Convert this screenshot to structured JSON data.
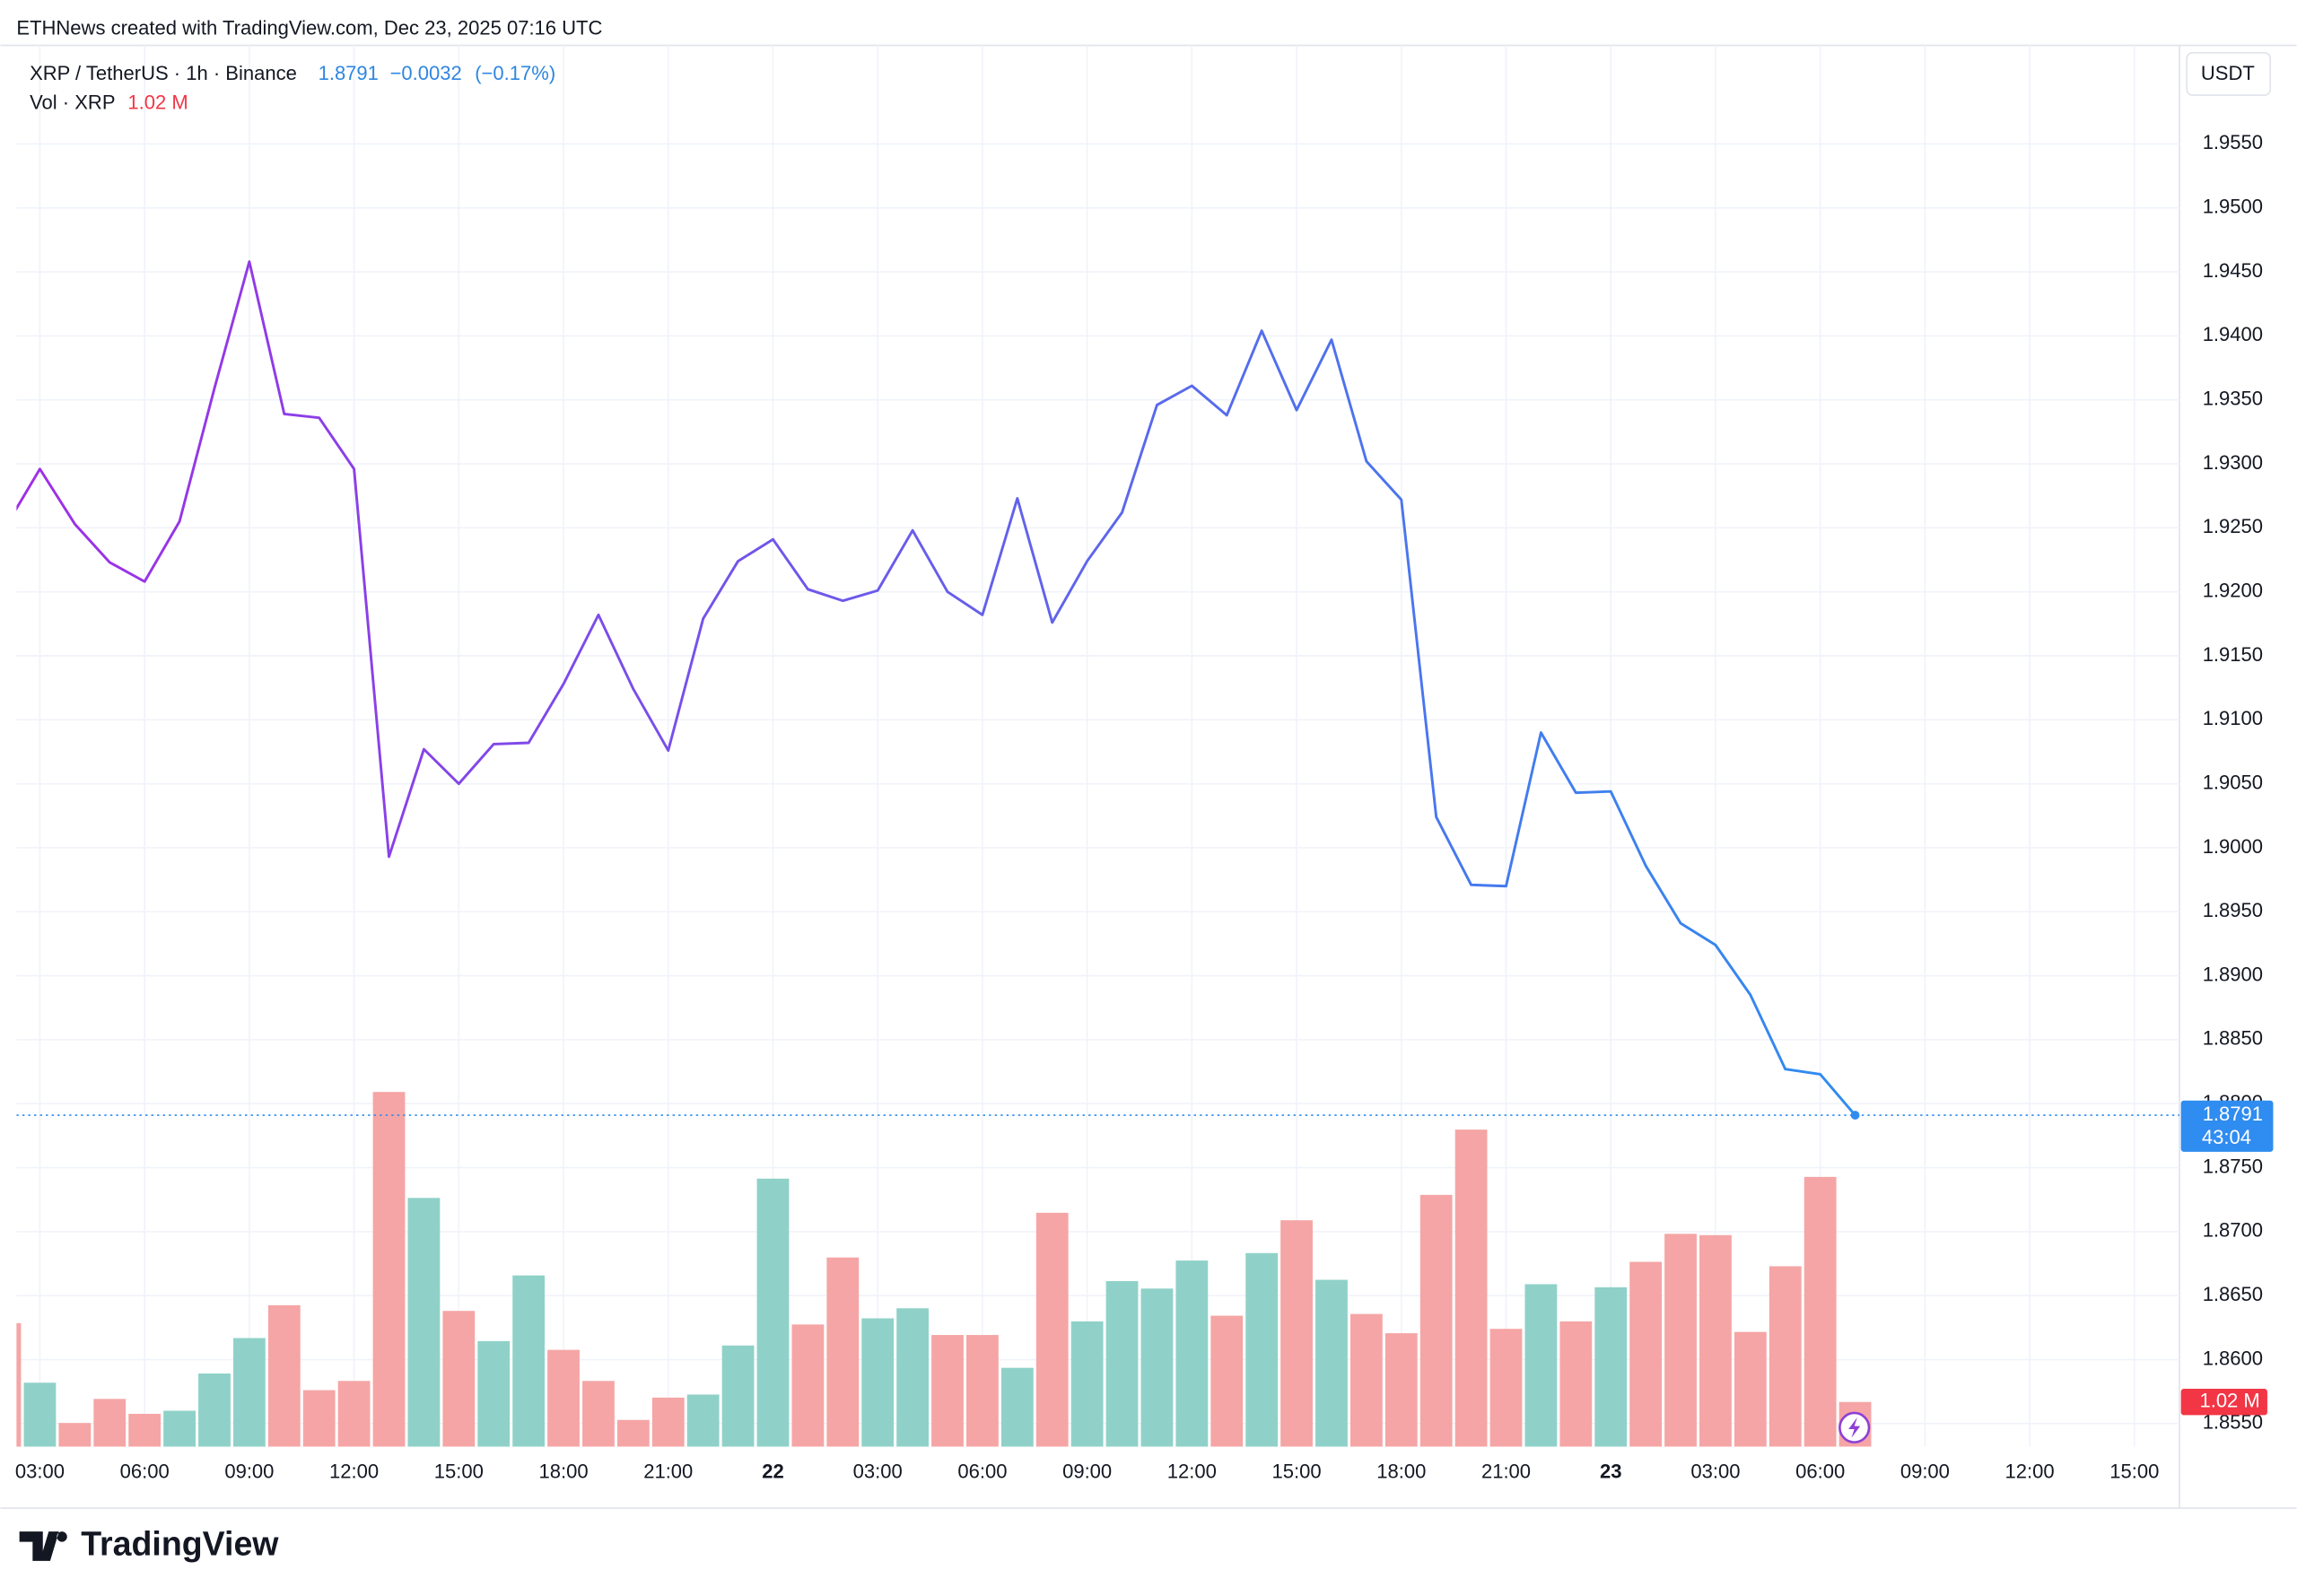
{
  "header": {
    "credit": "ETHNews created with TradingView.com, Dec 23, 2025 07:16 UTC",
    "symbol": "XRP / TetherUS · 1h · Binance",
    "price": "1.8791",
    "change": "−0.0032",
    "change_pct": "(−0.17%)",
    "currency": "USDT",
    "countdown": "43:04",
    "logo": "TradingView"
  },
  "chart_data": {
    "type": "line",
    "x": [
      2,
      3,
      4,
      5,
      6,
      7,
      8,
      9,
      10,
      11,
      12,
      13,
      14,
      15,
      16,
      17,
      18,
      19,
      20,
      21,
      22,
      23,
      24,
      25,
      26,
      27,
      28,
      29,
      30,
      31,
      32,
      33,
      34,
      35,
      36,
      37,
      38,
      39,
      40,
      41,
      42,
      43,
      44,
      45,
      46,
      47,
      48,
      49,
      50,
      51,
      52,
      53,
      54,
      55
    ],
    "xlim": [
      2.33,
      64.29
    ],
    "xticks": [
      {
        "value": 3,
        "label": "03:00"
      },
      {
        "value": 6,
        "label": "06:00"
      },
      {
        "value": 9,
        "label": "09:00"
      },
      {
        "value": 12,
        "label": "12:00"
      },
      {
        "value": 15,
        "label": "15:00"
      },
      {
        "value": 18,
        "label": "18:00"
      },
      {
        "value": 21,
        "label": "21:00"
      },
      {
        "value": 24,
        "label": "22"
      },
      {
        "value": 27,
        "label": "03:00"
      },
      {
        "value": 30,
        "label": "06:00"
      },
      {
        "value": 33,
        "label": "09:00"
      },
      {
        "value": 36,
        "label": "12:00"
      },
      {
        "value": 39,
        "label": "15:00"
      },
      {
        "value": 42,
        "label": "18:00"
      },
      {
        "value": 45,
        "label": "21:00"
      },
      {
        "value": 48,
        "label": "23"
      },
      {
        "value": 51,
        "label": "03:00"
      },
      {
        "value": 54,
        "label": "06:00"
      },
      {
        "value": 57,
        "label": "09:00"
      },
      {
        "value": 60,
        "label": "12:00"
      },
      {
        "value": 63,
        "label": "15:00"
      }
    ],
    "ylim": [
      1.8532,
      1.9627
    ],
    "yticks": [
      {
        "value": 1.855,
        "label": "1.8550"
      },
      {
        "value": 1.86,
        "label": "1.8600"
      },
      {
        "value": 1.865,
        "label": "1.8650"
      },
      {
        "value": 1.87,
        "label": "1.8700"
      },
      {
        "value": 1.875,
        "label": "1.8750"
      },
      {
        "value": 1.88,
        "label": "1.8800"
      },
      {
        "value": 1.885,
        "label": "1.8850"
      },
      {
        "value": 1.89,
        "label": "1.8900"
      },
      {
        "value": 1.895,
        "label": "1.8950"
      },
      {
        "value": 1.9,
        "label": "1.9000"
      },
      {
        "value": 1.905,
        "label": "1.9050"
      },
      {
        "value": 1.91,
        "label": "1.9100"
      },
      {
        "value": 1.915,
        "label": "1.9150"
      },
      {
        "value": 1.92,
        "label": "1.9200"
      },
      {
        "value": 1.925,
        "label": "1.9250"
      },
      {
        "value": 1.93,
        "label": "1.9300"
      },
      {
        "value": 1.935,
        "label": "1.9350"
      },
      {
        "value": 1.94,
        "label": "1.9400"
      },
      {
        "value": 1.945,
        "label": "1.9450"
      },
      {
        "value": 1.95,
        "label": "1.9500"
      },
      {
        "value": 1.955,
        "label": "1.9550"
      }
    ],
    "grid": true,
    "series": [
      {
        "colors": [
          "#a02ee6",
          "#2f8cf0"
        ],
        "values": [
          1.925,
          1.9296,
          1.9253,
          1.9223,
          1.9208,
          1.9255,
          1.9359,
          1.9458,
          1.9339,
          1.9336,
          1.9296,
          1.8993,
          1.9077,
          1.905,
          1.9081,
          1.9082,
          1.9128,
          1.9182,
          1.9124,
          1.9076,
          1.9179,
          1.9224,
          1.9241,
          1.9202,
          1.9193,
          1.9201,
          1.9248,
          1.92,
          1.9182,
          1.9273,
          1.9176,
          1.9224,
          1.9262,
          1.9346,
          1.9361,
          1.9338,
          1.9404,
          1.9342,
          1.9397,
          1.9302,
          1.9272,
          1.9024,
          1.8971,
          1.897,
          1.909,
          1.9043,
          1.9044,
          1.8986,
          1.8941,
          1.8924,
          1.8885,
          1.8827,
          1.8823,
          1.8791
        ]
      }
    ],
    "volume": {
      "name": "Vol · XRP",
      "last_label": "1.02 M",
      "ylim": [
        0,
        32
      ],
      "up_color": "#8fd1c8",
      "down_color": "#f5a5a5",
      "values": [
        2.82,
        1.46,
        0.54,
        1.09,
        0.75,
        0.82,
        1.67,
        2.48,
        3.23,
        1.29,
        1.5,
        8.1,
        5.68,
        3.1,
        2.41,
        3.91,
        2.21,
        1.5,
        0.61,
        1.12,
        1.19,
        2.31,
        6.12,
        2.79,
        4.32,
        2.93,
        3.16,
        2.55,
        2.55,
        1.8,
        5.34,
        2.86,
        3.78,
        3.61,
        4.25,
        2.99,
        4.42,
        5.17,
        3.81,
        3.03,
        2.59,
        5.75,
        7.24,
        2.69,
        3.71,
        2.86,
        3.64,
        4.22,
        4.86,
        4.83,
        2.62,
        4.12,
        6.16,
        1.02
      ],
      "directions": [
        "down",
        "up",
        "down",
        "down",
        "down",
        "up",
        "up",
        "up",
        "down",
        "down",
        "down",
        "down",
        "up",
        "down",
        "up",
        "up",
        "down",
        "down",
        "down",
        "down",
        "up",
        "up",
        "up",
        "down",
        "down",
        "up",
        "up",
        "down",
        "down",
        "up",
        "down",
        "up",
        "up",
        "up",
        "up",
        "down",
        "up",
        "down",
        "up",
        "down",
        "down",
        "down",
        "down",
        "down",
        "up",
        "down",
        "up",
        "down",
        "down",
        "down",
        "down",
        "down",
        "down",
        "down"
      ]
    }
  }
}
